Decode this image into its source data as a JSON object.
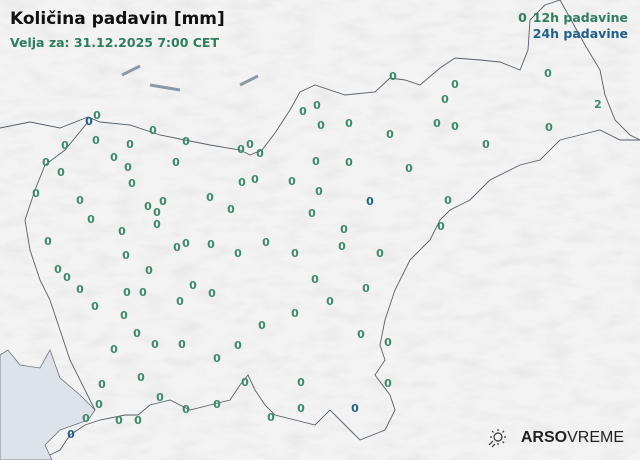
{
  "header": {
    "title": "Količina padavin [mm]",
    "subtitle": "Velja za: 31.12.2025 7:00 CET"
  },
  "legend": {
    "sample_value": "0",
    "items": [
      {
        "label": "12h padavine",
        "color": "#2e7d5b"
      },
      {
        "label": "24h padavine",
        "color": "#1f5f8b"
      }
    ]
  },
  "logo": {
    "brand": "ARSO",
    "product": "VREME",
    "icon": "sun-rain-icon"
  },
  "stations_12h_values": [
    "0",
    "0",
    "0",
    "0",
    "2",
    "0",
    "0",
    "0",
    "0",
    "0",
    "0",
    "0",
    "0",
    "0",
    "0",
    "0",
    "0",
    "0",
    "0",
    "0",
    "0",
    "0",
    "0",
    "0",
    "0",
    "0",
    "0",
    "0",
    "0",
    "0",
    "0",
    "0",
    "0",
    "0",
    "0",
    "0",
    "0",
    "0",
    "0",
    "0",
    "0",
    "0",
    "0",
    "0",
    "0",
    "0",
    "0",
    "0",
    "0",
    "0",
    "0",
    "0",
    "0",
    "0",
    "0",
    "0",
    "0",
    "0",
    "0",
    "0",
    "0",
    "0",
    "0",
    "0",
    "0",
    "0",
    "0",
    "0",
    "0",
    "0",
    "0",
    "0",
    "0",
    "0",
    "0",
    "0",
    "0",
    "0",
    "0",
    "0",
    "0",
    "0",
    "0",
    "0",
    "0",
    "0",
    "0",
    "0",
    "0",
    "0",
    "0",
    "0",
    "0",
    "0",
    "0",
    "0",
    "0",
    "0"
  ],
  "stations_24h_values": [
    "0",
    "0",
    "0",
    "0"
  ]
}
